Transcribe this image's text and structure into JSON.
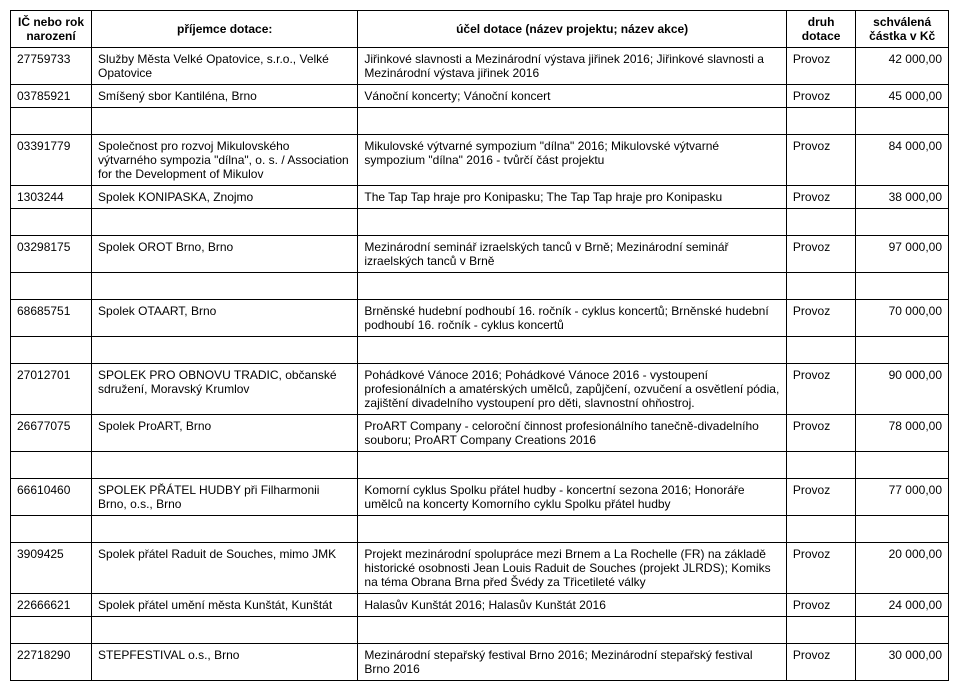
{
  "headers": {
    "col1": "IČ nebo rok narození",
    "col2": "příjemce dotace:",
    "col3": "účel dotace (název projektu; název akce)",
    "col4": "druh dotace",
    "col5": "schválená částka v Kč"
  },
  "rows": [
    {
      "ic": "27759733",
      "prijemce": "Služby Města Velké Opatovice, s.r.o., Velké Opatovice",
      "ucel": "Jiřinkové slavnosti a Mezinárodní výstava jiřinek 2016; Jiřinkové slavnosti a Mezinárodní výstava jiřinek 2016",
      "druh": "Provoz",
      "castka": "42 000,00",
      "gapBefore": false
    },
    {
      "ic": "03785921",
      "prijemce": "Smíšený sbor Kantiléna, Brno",
      "ucel": "Vánoční koncerty; Vánoční koncert",
      "druh": "Provoz",
      "castka": "45 000,00",
      "gapBefore": false
    },
    {
      "ic": "03391779",
      "prijemce": "Společnost pro rozvoj Mikulovského výtvarného sympozia \"dílna\", o. s. / Association for the Development of Mikulov",
      "ucel": "Mikulovské výtvarné sympozium \"dílna\" 2016; Mikulovské výtvarné sympozium \"dílna\" 2016 - tvůrčí část projektu",
      "druh": "Provoz",
      "castka": "84 000,00",
      "gapBefore": true
    },
    {
      "ic": "1303244",
      "prijemce": "Spolek KONIPASKA, Znojmo",
      "ucel": "The Tap Tap hraje pro Konipasku; The Tap Tap hraje pro Konipasku",
      "druh": "Provoz",
      "castka": "38 000,00",
      "gapBefore": false
    },
    {
      "ic": "03298175",
      "prijemce": "Spolek OROT Brno, Brno",
      "ucel": "Mezinárodní seminář izraelských tanců v Brně; Mezinárodní seminář izraelských tanců v Brně",
      "druh": "Provoz",
      "castka": "97 000,00",
      "gapBefore": true
    },
    {
      "ic": "68685751",
      "prijemce": "Spolek OTAART, Brno",
      "ucel": "Brněnské hudební podhoubí 16. ročník - cyklus koncertů; Brněnské hudební podhoubí 16. ročník - cyklus koncertů",
      "druh": "Provoz",
      "castka": "70 000,00",
      "gapBefore": true
    },
    {
      "ic": "27012701",
      "prijemce": "SPOLEK PRO OBNOVU TRADIC, občanské sdružení, Moravský Krumlov",
      "ucel": "Pohádkové Vánoce 2016; Pohádkové Vánoce 2016 - vystoupení profesionálních a amatérských umělců, zapůjčení, ozvučení a osvětlení pódia, zajištění divadelního vystoupení pro děti, slavnostní ohňostroj.",
      "druh": "Provoz",
      "castka": "90 000,00",
      "gapBefore": true
    },
    {
      "ic": "26677075",
      "prijemce": "Spolek ProART, Brno",
      "ucel": "ProART Company - celoroční činnost profesionálního tanečně-divadelního souboru; ProART Company Creations 2016",
      "druh": "Provoz",
      "castka": "78 000,00",
      "gapBefore": false
    },
    {
      "ic": "66610460",
      "prijemce": "SPOLEK PŘÁTEL HUDBY při Filharmonii Brno, o.s., Brno",
      "ucel": "Komorní cyklus Spolku přátel hudby - koncertní sezona 2016; Honoráře umělců na koncerty Komorního cyklu Spolku přátel hudby",
      "druh": "Provoz",
      "castka": "77 000,00",
      "gapBefore": true
    },
    {
      "ic": "3909425",
      "prijemce": "Spolek přátel Raduit de Souches, mimo JMK",
      "ucel": "Projekt mezinárodní spolupráce mezi Brnem a La Rochelle (FR) na základě historické osobnosti    Jean Louis Raduit de Souches  (projekt JLRDS); Komiks na téma Obrana Brna před Švédy za Třicetileté války",
      "druh": "Provoz",
      "castka": "20 000,00",
      "gapBefore": true
    },
    {
      "ic": "22666621",
      "prijemce": "Spolek přátel umění města Kunštát, Kunštát",
      "ucel": "Halasův Kunštát 2016; Halasův Kunštát 2016",
      "druh": "Provoz",
      "castka": "24 000,00",
      "gapBefore": false
    },
    {
      "ic": "22718290",
      "prijemce": "STEPFESTIVAL o.s., Brno",
      "ucel": "Mezinárodní stepařský festival Brno 2016; Mezinárodní stepařský festival Brno 2016",
      "druh": "Provoz",
      "castka": "30 000,00",
      "gapBefore": true
    }
  ]
}
